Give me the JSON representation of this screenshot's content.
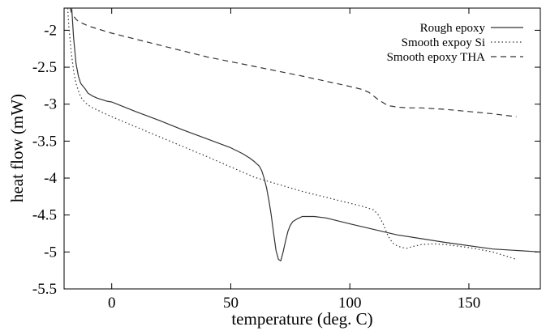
{
  "chart_data": {
    "type": "line",
    "title": "",
    "xlabel": "temperature (deg. C)",
    "ylabel": "heat flow (mW)",
    "xlim": [
      -20,
      180
    ],
    "ylim": [
      -5.5,
      -1.7
    ],
    "xticks": [
      0,
      50,
      100,
      150
    ],
    "xtick_labels": [
      "0",
      "50",
      "100",
      "150"
    ],
    "yticks": [
      -5.5,
      -5,
      -4.5,
      -4,
      -3.5,
      -3,
      -2.5,
      -2
    ],
    "ytick_labels": [
      "-5.5",
      "-5",
      "-4.5",
      "-4",
      "-3.5",
      "-3",
      "-2.5",
      "-2"
    ],
    "grid": false,
    "legend_position": "top-right",
    "series": [
      {
        "name": "Rough epoxy",
        "style": "solid",
        "x": [
          -16.8,
          -16,
          -15,
          -14,
          -13,
          -12,
          -11,
          -10,
          -8,
          -6,
          -4,
          -2,
          0,
          10,
          20,
          30,
          40,
          50,
          55,
          58,
          60,
          62,
          63,
          64,
          65,
          66,
          67,
          68,
          69,
          70,
          71,
          72,
          73,
          74,
          75,
          76,
          78,
          80,
          85,
          90,
          100,
          120,
          140,
          160,
          180
        ],
        "y": [
          -1.7,
          -2.1,
          -2.45,
          -2.62,
          -2.72,
          -2.76,
          -2.8,
          -2.85,
          -2.89,
          -2.92,
          -2.94,
          -2.96,
          -2.97,
          -3.1,
          -3.22,
          -3.35,
          -3.47,
          -3.59,
          -3.67,
          -3.73,
          -3.78,
          -3.84,
          -3.9,
          -4.0,
          -4.13,
          -4.3,
          -4.5,
          -4.75,
          -4.98,
          -5.1,
          -5.12,
          -5.0,
          -4.85,
          -4.72,
          -4.64,
          -4.59,
          -4.55,
          -4.52,
          -4.52,
          -4.54,
          -4.62,
          -4.77,
          -4.87,
          -4.96,
          -5.0
        ]
      },
      {
        "name": "Smooth expoy Si",
        "style": "dotted",
        "x": [
          -18.5,
          -18,
          -17,
          -16,
          -15,
          -14,
          -13,
          -12,
          -10,
          -8,
          -6,
          -4,
          -2,
          0,
          20,
          40,
          60,
          80,
          100,
          105,
          108,
          110,
          112,
          114,
          116,
          118,
          120,
          122,
          124,
          126,
          130,
          135,
          140,
          150,
          160,
          170
        ],
        "y": [
          -1.7,
          -1.95,
          -2.3,
          -2.55,
          -2.72,
          -2.82,
          -2.9,
          -2.95,
          -3.01,
          -3.05,
          -3.08,
          -3.11,
          -3.14,
          -3.17,
          -3.44,
          -3.71,
          -3.99,
          -4.18,
          -4.34,
          -4.38,
          -4.41,
          -4.43,
          -4.5,
          -4.62,
          -4.78,
          -4.88,
          -4.92,
          -4.94,
          -4.95,
          -4.93,
          -4.9,
          -4.89,
          -4.9,
          -4.94,
          -5.0,
          -5.1
        ]
      },
      {
        "name": "Smooth epoxy THA",
        "style": "dashed",
        "x": [
          -17.5,
          -17,
          -16,
          -15,
          -14,
          -12,
          -10,
          -5,
          0,
          20,
          40,
          60,
          80,
          100,
          105,
          108,
          110,
          112,
          114,
          116,
          118,
          120,
          125,
          130,
          140,
          150,
          160,
          170
        ],
        "y": [
          -1.7,
          -1.75,
          -1.81,
          -1.85,
          -1.88,
          -1.91,
          -1.94,
          -1.99,
          -2.04,
          -2.2,
          -2.36,
          -2.49,
          -2.62,
          -2.76,
          -2.8,
          -2.84,
          -2.89,
          -2.94,
          -2.98,
          -3.02,
          -3.03,
          -3.04,
          -3.05,
          -3.05,
          -3.07,
          -3.1,
          -3.13,
          -3.17
        ]
      }
    ]
  }
}
